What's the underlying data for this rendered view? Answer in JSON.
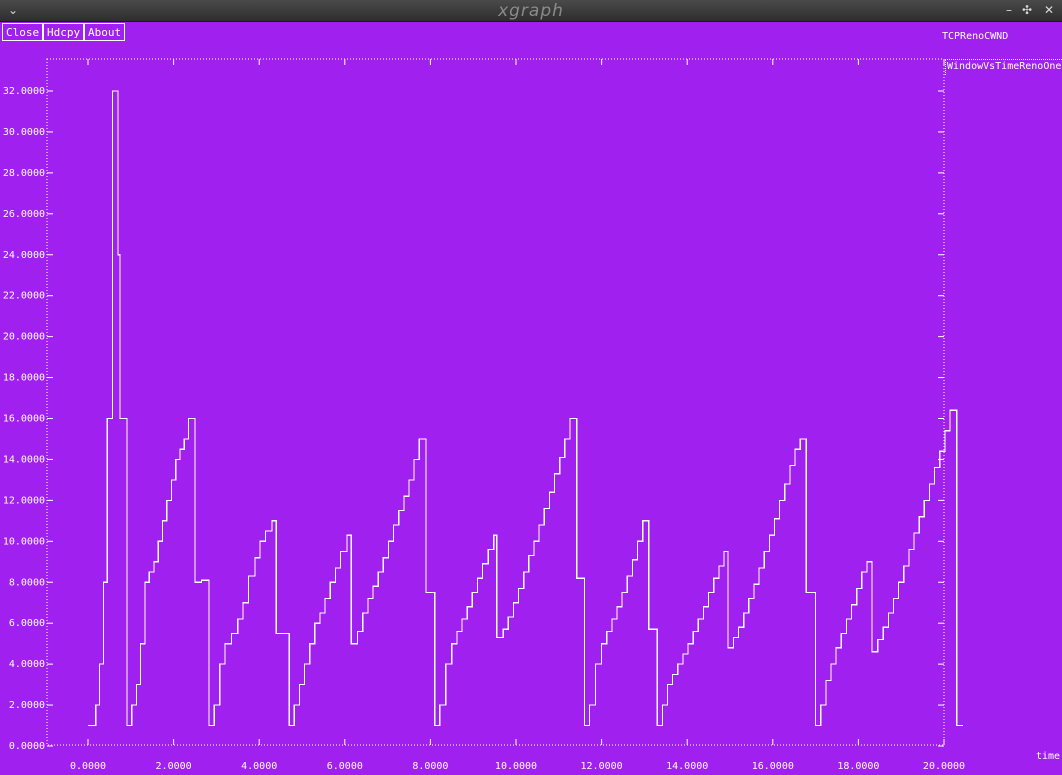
{
  "window": {
    "title": "xgraph",
    "menu_glyph": "⌄",
    "minimize_glyph": "–",
    "maximize_glyph": "✣",
    "close_glyph": "✕"
  },
  "toolbar": {
    "close_label": "Close",
    "hdcpy_label": "Hdcpy",
    "about_label": "About"
  },
  "colors": {
    "background": "#a020f0",
    "foreground": "#ffffff"
  },
  "chart_data": {
    "type": "line",
    "title": "TCPRenoCWND",
    "xlabel": "time",
    "ylabel": "",
    "xlim": [
      0,
      20
    ],
    "ylim": [
      0,
      32
    ],
    "x_ticks": [
      "0.0000",
      "2.0000",
      "4.0000",
      "6.0000",
      "8.0000",
      "10.0000",
      "12.0000",
      "14.0000",
      "16.0000",
      "18.0000",
      "20.0000"
    ],
    "y_ticks": [
      "0.0000",
      "2.0000",
      "4.0000",
      "6.0000",
      "8.0000",
      "10.0000",
      "12.0000",
      "14.0000",
      "16.0000",
      "18.0000",
      "20.0000",
      "22.0000",
      "24.0000",
      "26.0000",
      "28.0000",
      "30.0000",
      "32.0000"
    ],
    "grid": false,
    "legend_position": "top-right",
    "series": [
      {
        "name": "WindowVsTimeRenoOne",
        "step": true,
        "points": [
          [
            0.0,
            1
          ],
          [
            0.18,
            2
          ],
          [
            0.27,
            4
          ],
          [
            0.36,
            8
          ],
          [
            0.45,
            16
          ],
          [
            0.57,
            32
          ],
          [
            0.7,
            24
          ],
          [
            0.75,
            16
          ],
          [
            0.91,
            1
          ],
          [
            1.02,
            2
          ],
          [
            1.13,
            3
          ],
          [
            1.23,
            5
          ],
          [
            1.33,
            8
          ],
          [
            1.43,
            8.5
          ],
          [
            1.54,
            9
          ],
          [
            1.64,
            10
          ],
          [
            1.74,
            11
          ],
          [
            1.84,
            12
          ],
          [
            1.95,
            13
          ],
          [
            2.05,
            14
          ],
          [
            2.15,
            14.5
          ],
          [
            2.25,
            15
          ],
          [
            2.35,
            16
          ],
          [
            2.5,
            8
          ],
          [
            2.65,
            8.1
          ],
          [
            2.83,
            1
          ],
          [
            2.95,
            2
          ],
          [
            3.08,
            4
          ],
          [
            3.2,
            5
          ],
          [
            3.35,
            5.5
          ],
          [
            3.5,
            6.2
          ],
          [
            3.62,
            7
          ],
          [
            3.75,
            8.3
          ],
          [
            3.9,
            9.2
          ],
          [
            4.02,
            10
          ],
          [
            4.15,
            10.5
          ],
          [
            4.3,
            11
          ],
          [
            4.4,
            5.5
          ],
          [
            4.7,
            1
          ],
          [
            4.82,
            2
          ],
          [
            4.94,
            3
          ],
          [
            5.06,
            4
          ],
          [
            5.18,
            5
          ],
          [
            5.3,
            6
          ],
          [
            5.42,
            6.5
          ],
          [
            5.54,
            7.2
          ],
          [
            5.66,
            8
          ],
          [
            5.78,
            8.7
          ],
          [
            5.9,
            9.5
          ],
          [
            6.05,
            10.3
          ],
          [
            6.15,
            5
          ],
          [
            6.3,
            5.6
          ],
          [
            6.42,
            6.5
          ],
          [
            6.54,
            7.2
          ],
          [
            6.66,
            7.8
          ],
          [
            6.78,
            8.5
          ],
          [
            6.9,
            9.2
          ],
          [
            7.02,
            10
          ],
          [
            7.14,
            10.8
          ],
          [
            7.26,
            11.5
          ],
          [
            7.38,
            12.2
          ],
          [
            7.5,
            13
          ],
          [
            7.62,
            14
          ],
          [
            7.74,
            15
          ],
          [
            7.9,
            7.5
          ],
          [
            8.1,
            1
          ],
          [
            8.22,
            2
          ],
          [
            8.36,
            4
          ],
          [
            8.5,
            5
          ],
          [
            8.62,
            5.6
          ],
          [
            8.74,
            6.2
          ],
          [
            8.86,
            6.8
          ],
          [
            8.98,
            7.5
          ],
          [
            9.1,
            8.2
          ],
          [
            9.22,
            8.9
          ],
          [
            9.35,
            9.6
          ],
          [
            9.48,
            10.3
          ],
          [
            9.55,
            5.3
          ],
          [
            9.7,
            5.7
          ],
          [
            9.82,
            6.3
          ],
          [
            9.94,
            7
          ],
          [
            10.06,
            7.7
          ],
          [
            10.18,
            8.5
          ],
          [
            10.3,
            9.3
          ],
          [
            10.42,
            10
          ],
          [
            10.54,
            10.8
          ],
          [
            10.66,
            11.6
          ],
          [
            10.78,
            12.4
          ],
          [
            10.9,
            13.3
          ],
          [
            11.02,
            14.1
          ],
          [
            11.14,
            15
          ],
          [
            11.26,
            16
          ],
          [
            11.42,
            8.2
          ],
          [
            11.6,
            1
          ],
          [
            11.72,
            2
          ],
          [
            11.86,
            4
          ],
          [
            12.0,
            5
          ],
          [
            12.12,
            5.6
          ],
          [
            12.24,
            6.2
          ],
          [
            12.36,
            6.8
          ],
          [
            12.48,
            7.5
          ],
          [
            12.6,
            8.3
          ],
          [
            12.72,
            9.1
          ],
          [
            12.84,
            10
          ],
          [
            12.96,
            11
          ],
          [
            13.1,
            5.7
          ],
          [
            13.3,
            1
          ],
          [
            13.42,
            2
          ],
          [
            13.54,
            3
          ],
          [
            13.66,
            3.5
          ],
          [
            13.78,
            4
          ],
          [
            13.9,
            4.5
          ],
          [
            14.02,
            5
          ],
          [
            14.14,
            5.6
          ],
          [
            14.26,
            6.2
          ],
          [
            14.38,
            6.8
          ],
          [
            14.5,
            7.5
          ],
          [
            14.62,
            8.2
          ],
          [
            14.74,
            8.8
          ],
          [
            14.86,
            9.5
          ],
          [
            14.95,
            4.8
          ],
          [
            15.08,
            5.3
          ],
          [
            15.2,
            5.8
          ],
          [
            15.32,
            6.5
          ],
          [
            15.44,
            7.2
          ],
          [
            15.56,
            7.9
          ],
          [
            15.68,
            8.7
          ],
          [
            15.8,
            9.5
          ],
          [
            15.92,
            10.3
          ],
          [
            16.04,
            11.1
          ],
          [
            16.16,
            12
          ],
          [
            16.28,
            12.8
          ],
          [
            16.4,
            13.7
          ],
          [
            16.52,
            14.5
          ],
          [
            16.64,
            15
          ],
          [
            16.78,
            7.5
          ],
          [
            17.0,
            1
          ],
          [
            17.12,
            2
          ],
          [
            17.24,
            3.2
          ],
          [
            17.36,
            4
          ],
          [
            17.48,
            4.8
          ],
          [
            17.6,
            5.5
          ],
          [
            17.72,
            6.2
          ],
          [
            17.84,
            6.9
          ],
          [
            17.96,
            7.7
          ],
          [
            18.08,
            8.5
          ],
          [
            18.2,
            9
          ],
          [
            18.32,
            4.6
          ],
          [
            18.45,
            5.2
          ],
          [
            18.58,
            5.8
          ],
          [
            18.7,
            6.5
          ],
          [
            18.82,
            7.2
          ],
          [
            18.94,
            8
          ],
          [
            19.06,
            8.8
          ],
          [
            19.18,
            9.6
          ],
          [
            19.3,
            10.4
          ],
          [
            19.42,
            11.2
          ],
          [
            19.54,
            12
          ],
          [
            19.66,
            12.8
          ],
          [
            19.78,
            13.6
          ],
          [
            19.9,
            14.4
          ],
          [
            20.02,
            15.4
          ],
          [
            20.14,
            16.4
          ],
          [
            20.3,
            1
          ]
        ]
      }
    ]
  }
}
